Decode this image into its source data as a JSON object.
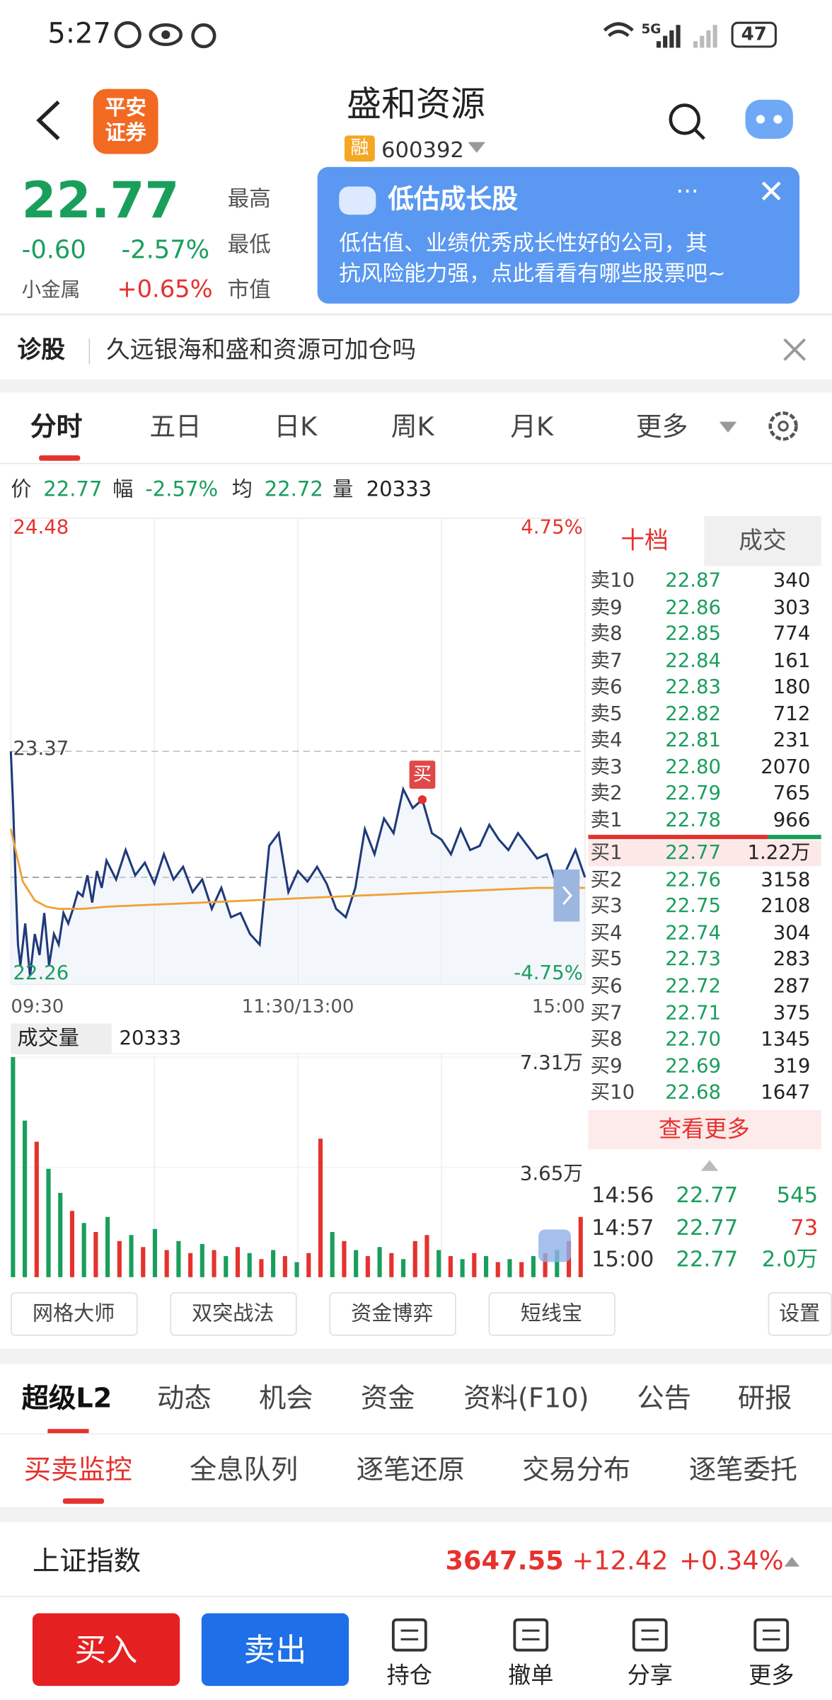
{
  "status_bar": {
    "time": "5:27",
    "network": "5G",
    "battery": "47"
  },
  "header": {
    "broker_logo": [
      "平安",
      "证券"
    ],
    "title": "盛和资源",
    "badge": "融",
    "code": "600392"
  },
  "quote": {
    "price": "22.77",
    "change": "-0.60",
    "change_pct": "-2.57%",
    "sector": "小金属",
    "sector_pct": "+0.65%",
    "labels": [
      "最高",
      "最低",
      "市值"
    ]
  },
  "popup": {
    "title": "低估成长股",
    "lines": [
      "低估值、业绩优秀成长性好的公司，其",
      "抗风险能力强，点此看看有哪些股票吧~"
    ]
  },
  "diagnosis": {
    "label": "诊股",
    "question": "久远银海和盛和资源可加仓吗"
  },
  "chart_tabs": {
    "items": [
      "分时",
      "五日",
      "日K",
      "周K",
      "月K",
      "更多"
    ],
    "active": 0
  },
  "info": {
    "price_label": "价",
    "price": "22.77",
    "range_label": "幅",
    "range": "-2.57%",
    "avg_label": "均",
    "avg": "22.72",
    "volume_label": "量",
    "volume": "20333"
  },
  "chart_data": [
    {
      "type": "line",
      "xlim": [
        0,
        240
      ],
      "xticks": [
        {
          "value": 0,
          "label": "09:30"
        },
        {
          "value": 120,
          "label": "11:30/13:00"
        },
        {
          "value": 240,
          "label": "15:00"
        }
      ],
      "ylim": [
        22.26,
        24.48
      ],
      "yticks": [
        24.48,
        23.37,
        22.26
      ],
      "y2lim": [
        -4.75,
        4.75
      ],
      "y2ticks": [
        {
          "value": 4.75,
          "label": "4.75%"
        },
        {
          "value": -4.75,
          "label": "-4.75%"
        }
      ],
      "series": [
        {
          "color": "#1f3a7a",
          "x": [
            0,
            1,
            2,
            3,
            4,
            6,
            8,
            10,
            12,
            14,
            16,
            18,
            20,
            22,
            24,
            26,
            28,
            30,
            32,
            34,
            36,
            38,
            40,
            44,
            48,
            52,
            56,
            60,
            64,
            68,
            72,
            76,
            80,
            84,
            88,
            92,
            96,
            100,
            104,
            108,
            112,
            116,
            120,
            124,
            128,
            132,
            136,
            140,
            144,
            148,
            152,
            156,
            160,
            164,
            168,
            172,
            176,
            180,
            184,
            188,
            192,
            196,
            200,
            204,
            208,
            212,
            216,
            220,
            224,
            228,
            232,
            236,
            240
          ],
          "values": [
            23.37,
            23.1,
            22.75,
            22.45,
            22.35,
            22.55,
            22.3,
            22.5,
            22.4,
            22.6,
            22.35,
            22.5,
            22.45,
            22.6,
            22.55,
            22.62,
            22.7,
            22.68,
            22.78,
            22.65,
            22.8,
            22.72,
            22.85,
            22.76,
            22.9,
            22.78,
            22.84,
            22.74,
            22.88,
            22.76,
            22.82,
            22.7,
            22.76,
            22.62,
            22.72,
            22.58,
            22.6,
            22.5,
            22.45,
            22.92,
            22.98,
            22.7,
            22.8,
            22.75,
            22.82,
            22.74,
            22.62,
            22.58,
            22.72,
            23.0,
            22.88,
            23.05,
            22.98,
            23.19,
            23.1,
            23.14,
            22.98,
            22.95,
            22.88,
            23.0,
            22.9,
            22.92,
            23.02,
            22.95,
            22.9,
            22.98,
            22.92,
            22.86,
            22.88,
            22.74,
            22.8,
            22.9,
            22.77
          ]
        },
        {
          "color": "#f0a030",
          "x": [
            0,
            5,
            10,
            15,
            20,
            30,
            40,
            60,
            80,
            100,
            120,
            140,
            160,
            180,
            200,
            220,
            240
          ],
          "values": [
            23.0,
            22.75,
            22.66,
            22.63,
            22.62,
            22.62,
            22.63,
            22.64,
            22.65,
            22.66,
            22.67,
            22.68,
            22.69,
            22.7,
            22.71,
            22.72,
            22.72
          ]
        }
      ],
      "current_price_line": 22.77,
      "marker": {
        "label": "买",
        "x": 172,
        "value": 23.14
      }
    },
    {
      "type": "bar",
      "title": "成交量",
      "current": "20333",
      "xlim": [
        0,
        240
      ],
      "ylim": [
        0,
        73100
      ],
      "yticks": [
        {
          "value": 73100,
          "label": "7.31万"
        },
        {
          "value": 36500,
          "label": "3.65万"
        }
      ],
      "x": [
        0,
        5,
        10,
        15,
        20,
        25,
        30,
        35,
        40,
        45,
        50,
        55,
        60,
        65,
        70,
        75,
        80,
        85,
        90,
        95,
        100,
        105,
        110,
        115,
        120,
        125,
        130,
        135,
        140,
        145,
        150,
        155,
        160,
        165,
        170,
        175,
        180,
        185,
        190,
        195,
        200,
        205,
        210,
        215,
        220,
        225,
        230,
        235,
        240
      ],
      "values": [
        73100,
        52000,
        45000,
        36000,
        28000,
        22000,
        18000,
        15000,
        20000,
        12000,
        14000,
        10000,
        16000,
        9000,
        12000,
        8000,
        11000,
        9000,
        7000,
        10000,
        8000,
        6000,
        9000,
        7000,
        5000,
        8000,
        46000,
        15000,
        12000,
        9000,
        7000,
        10000,
        8000,
        6000,
        12000,
        14000,
        9000,
        7000,
        6000,
        8000,
        7000,
        5000,
        6000,
        5000,
        7000,
        8000,
        9000,
        12000,
        20000
      ],
      "colors": [
        "#1a9e5c",
        "#1a9e5c",
        "#e5322d",
        "#1a9e5c",
        "#1a9e5c",
        "#e5322d",
        "#1a9e5c",
        "#e5322d",
        "#1a9e5c",
        "#e5322d",
        "#1a9e5c",
        "#e5322d",
        "#1a9e5c",
        "#e5322d",
        "#1a9e5c",
        "#e5322d",
        "#1a9e5c",
        "#e5322d",
        "#1a9e5c",
        "#e5322d",
        "#1a9e5c",
        "#e5322d",
        "#1a9e5c",
        "#e5322d",
        "#1a9e5c",
        "#e5322d",
        "#e5322d",
        "#1a9e5c",
        "#e5322d",
        "#1a9e5c",
        "#e5322d",
        "#1a9e5c",
        "#e5322d",
        "#1a9e5c",
        "#e5322d",
        "#e5322d",
        "#1a9e5c",
        "#e5322d",
        "#1a9e5c",
        "#e5322d",
        "#1a9e5c",
        "#e5322d",
        "#1a9e5c",
        "#e5322d",
        "#1a9e5c",
        "#e5322d",
        "#1a9e5c",
        "#e5322d",
        "#e5322d"
      ]
    }
  ],
  "order_book": {
    "tabs": [
      "十档",
      "成交"
    ],
    "asks": [
      [
        "卖10",
        "22.87",
        "340"
      ],
      [
        "卖9",
        "22.86",
        "303"
      ],
      [
        "卖8",
        "22.85",
        "774"
      ],
      [
        "卖7",
        "22.84",
        "161"
      ],
      [
        "卖6",
        "22.83",
        "180"
      ],
      [
        "卖5",
        "22.82",
        "712"
      ],
      [
        "卖4",
        "22.81",
        "231"
      ],
      [
        "卖3",
        "22.80",
        "2070"
      ],
      [
        "卖2",
        "22.79",
        "765"
      ],
      [
        "卖1",
        "22.78",
        "966"
      ]
    ],
    "bids": [
      [
        "买1",
        "22.77",
        "1.22万"
      ],
      [
        "买2",
        "22.76",
        "3158"
      ],
      [
        "买3",
        "22.75",
        "2108"
      ],
      [
        "买4",
        "22.74",
        "304"
      ],
      [
        "买5",
        "22.73",
        "283"
      ],
      [
        "买6",
        "22.72",
        "287"
      ],
      [
        "买7",
        "22.71",
        "375"
      ],
      [
        "买8",
        "22.70",
        "1345"
      ],
      [
        "买9",
        "22.69",
        "319"
      ],
      [
        "买10",
        "22.68",
        "1647"
      ]
    ],
    "more": "查看更多",
    "trades": [
      {
        "time": "14:56",
        "price": "22.77",
        "volume": "545",
        "color": "#1a9e5c"
      },
      {
        "time": "14:57",
        "price": "22.77",
        "volume": "73",
        "color": "#e5322d"
      },
      {
        "time": "15:00",
        "price": "22.77",
        "volume": "2.0万",
        "color": "#1a9e5c"
      }
    ]
  },
  "tools": {
    "items": [
      "网格大师",
      "双突战法",
      "资金博弈",
      "短线宝"
    ],
    "settings": "设置"
  },
  "sections": {
    "tabs": [
      "超级L2",
      "动态",
      "机会",
      "资金",
      "资料(F10)",
      "公告",
      "研报"
    ],
    "subtabs": [
      "买卖监控",
      "全息队列",
      "逐笔还原",
      "交易分布",
      "逐笔委托"
    ]
  },
  "index": {
    "name": "上证指数",
    "value": "3647.55",
    "change": "+12.42",
    "change_pct": "+0.34%"
  },
  "bottom_bar": {
    "buy": "买入",
    "sell": "卖出",
    "items": [
      "持仓",
      "撤单",
      "分享",
      "更多"
    ]
  }
}
